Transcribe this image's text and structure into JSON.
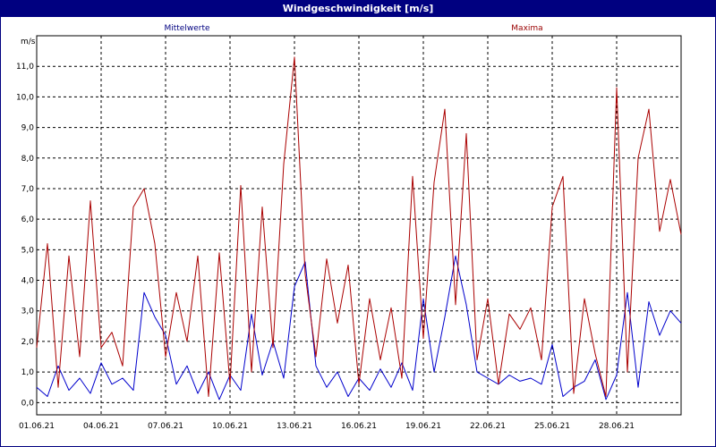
{
  "window": {
    "title": "Windgeschwindigkeit [m/s]"
  },
  "chart_data": {
    "type": "line",
    "title": "Windgeschwindigkeit [m/s]",
    "ylabel": "m/s",
    "xlabel": "",
    "ylim": [
      -0.4,
      12.0
    ],
    "xlim": [
      "01.06.21",
      "01.07.21"
    ],
    "grid": true,
    "grid_style": "dashed",
    "legend_placement": "top",
    "yticks": [
      "0,0",
      "1,0",
      "2,0",
      "3,0",
      "4,0",
      "5,0",
      "6,0",
      "7,0",
      "8,0",
      "9,0",
      "10,0",
      "11,0"
    ],
    "yticks_values": [
      0,
      1,
      2,
      3,
      4,
      5,
      6,
      7,
      8,
      9,
      10,
      11
    ],
    "xticks": [
      "01.06.21",
      "04.06.21",
      "07.06.21",
      "10.06.21",
      "13.06.21",
      "16.06.21",
      "19.06.21",
      "22.06.21",
      "25.06.21",
      "28.06.21"
    ],
    "series": [
      {
        "name": "Mittelwerte",
        "color": "#0000cc",
        "x": [
          "01.06.21 00:00",
          "01.06.21 12:00",
          "02.06.21 00:00",
          "02.06.21 12:00",
          "03.06.21 00:00",
          "03.06.21 12:00",
          "04.06.21 00:00",
          "04.06.21 12:00",
          "05.06.21 00:00",
          "05.06.21 12:00",
          "06.06.21 00:00",
          "06.06.21 12:00",
          "07.06.21 00:00",
          "07.06.21 12:00",
          "08.06.21 00:00",
          "08.06.21 12:00",
          "09.06.21 00:00",
          "09.06.21 12:00",
          "10.06.21 00:00",
          "10.06.21 12:00",
          "11.06.21 00:00",
          "11.06.21 12:00",
          "12.06.21 00:00",
          "12.06.21 12:00",
          "13.06.21 00:00",
          "13.06.21 12:00",
          "14.06.21 00:00",
          "14.06.21 12:00",
          "15.06.21 00:00",
          "15.06.21 12:00",
          "16.06.21 00:00",
          "16.06.21 12:00",
          "17.06.21 00:00",
          "17.06.21 12:00",
          "18.06.21 00:00",
          "18.06.21 12:00",
          "19.06.21 00:00",
          "19.06.21 12:00",
          "20.06.21 00:00",
          "20.06.21 12:00",
          "21.06.21 00:00",
          "21.06.21 12:00",
          "22.06.21 00:00",
          "22.06.21 12:00",
          "23.06.21 00:00",
          "23.06.21 12:00",
          "24.06.21 00:00",
          "24.06.21 12:00",
          "25.06.21 00:00",
          "25.06.21 12:00",
          "26.06.21 00:00",
          "26.06.21 12:00",
          "27.06.21 00:00",
          "27.06.21 12:00",
          "28.06.21 00:00",
          "28.06.21 12:00",
          "29.06.21 00:00",
          "29.06.21 12:00",
          "30.06.21 00:00",
          "30.06.21 12:00",
          "01.07.21 00:00"
        ],
        "values": [
          0.5,
          0.2,
          1.2,
          0.4,
          0.8,
          0.3,
          1.3,
          0.6,
          0.8,
          0.4,
          3.6,
          2.8,
          2.2,
          0.6,
          1.2,
          0.3,
          1.0,
          0.1,
          0.9,
          0.4,
          2.9,
          0.9,
          2.0,
          0.8,
          3.8,
          4.6,
          1.2,
          0.5,
          1.0,
          0.2,
          0.8,
          0.4,
          1.1,
          0.5,
          1.3,
          0.4,
          3.4,
          1.0,
          2.8,
          4.8,
          3.2,
          1.0,
          0.8,
          0.6,
          0.9,
          0.7,
          0.8,
          0.6,
          1.9,
          0.2,
          0.5,
          0.7,
          1.4,
          0.1,
          0.9,
          3.6,
          0.5,
          3.3,
          2.2,
          3.0,
          2.6
        ]
      },
      {
        "name": "Maxima",
        "color": "#aa0000",
        "x": [
          "01.06.21 00:00",
          "01.06.21 12:00",
          "02.06.21 00:00",
          "02.06.21 12:00",
          "03.06.21 00:00",
          "03.06.21 12:00",
          "04.06.21 00:00",
          "04.06.21 12:00",
          "05.06.21 00:00",
          "05.06.21 12:00",
          "06.06.21 00:00",
          "06.06.21 12:00",
          "07.06.21 00:00",
          "07.06.21 12:00",
          "08.06.21 00:00",
          "08.06.21 12:00",
          "09.06.21 00:00",
          "09.06.21 12:00",
          "10.06.21 00:00",
          "10.06.21 12:00",
          "11.06.21 00:00",
          "11.06.21 12:00",
          "12.06.21 00:00",
          "12.06.21 12:00",
          "13.06.21 00:00",
          "13.06.21 12:00",
          "14.06.21 00:00",
          "14.06.21 12:00",
          "15.06.21 00:00",
          "15.06.21 12:00",
          "16.06.21 00:00",
          "16.06.21 12:00",
          "17.06.21 00:00",
          "17.06.21 12:00",
          "18.06.21 00:00",
          "18.06.21 12:00",
          "19.06.21 00:00",
          "19.06.21 12:00",
          "20.06.21 00:00",
          "20.06.21 12:00",
          "21.06.21 00:00",
          "21.06.21 12:00",
          "22.06.21 00:00",
          "22.06.21 12:00",
          "23.06.21 00:00",
          "23.06.21 12:00",
          "24.06.21 00:00",
          "24.06.21 12:00",
          "25.06.21 00:00",
          "25.06.21 12:00",
          "26.06.21 00:00",
          "26.06.21 12:00",
          "27.06.21 00:00",
          "27.06.21 12:00",
          "28.06.21 00:00",
          "28.06.21 12:00",
          "29.06.21 00:00",
          "29.06.21 12:00",
          "30.06.21 00:00",
          "30.06.21 12:00",
          "01.07.21 00:00"
        ],
        "values": [
          1.8,
          5.2,
          0.5,
          4.8,
          1.5,
          6.6,
          1.8,
          2.3,
          1.2,
          6.4,
          7.0,
          5.2,
          1.5,
          3.6,
          2.0,
          4.8,
          0.2,
          4.9,
          0.6,
          7.1,
          1.0,
          6.4,
          1.8,
          7.8,
          11.3,
          4.2,
          1.5,
          4.7,
          2.6,
          4.5,
          0.6,
          3.4,
          1.4,
          3.1,
          0.8,
          7.4,
          2.1,
          7.2,
          9.6,
          3.2,
          8.8,
          1.4,
          3.4,
          0.6,
          2.9,
          2.4,
          3.1,
          1.4,
          6.4,
          7.4,
          0.3,
          3.4,
          1.6,
          0.2,
          10.3,
          1.0,
          8.0,
          9.6,
          5.6,
          7.3,
          5.5
        ]
      }
    ]
  }
}
